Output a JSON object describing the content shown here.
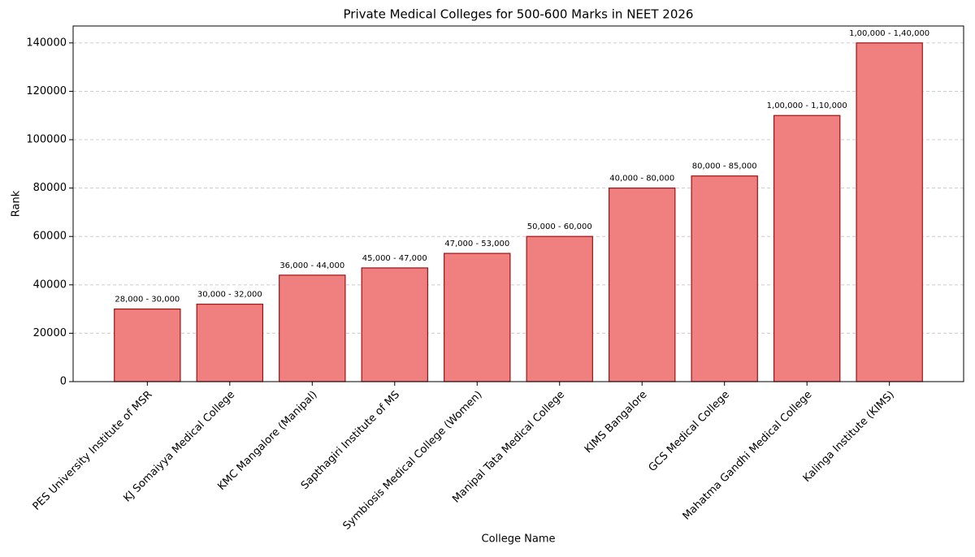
{
  "chart_data": {
    "type": "bar",
    "title": "Private Medical Colleges for 500-600 Marks in NEET 2026",
    "x_label": "College Name",
    "y_label": "Rank",
    "categories": [
      "PES University Institute of MSR",
      "KJ Somaiyya Medical College",
      "KMC Mangalore (Manipal)",
      "Sapthagiri Institute of MS",
      "Symbiosis Medical College (Women)",
      "Manipal Tata Medical College",
      "KIMS Bangalore",
      "GCS Medical College",
      "Mahatma Gandhi Medical College",
      "Kalinga Institute (KIMS)"
    ],
    "values": [
      30000,
      32000,
      44000,
      47000,
      53000,
      60000,
      80000,
      85000,
      110000,
      140000
    ],
    "value_labels": [
      "28,000 - 30,000",
      "30,000 - 32,000",
      "36,000 - 44,000",
      "45,000 - 47,000",
      "47,000 - 53,000",
      "50,000 - 60,000",
      "40,000 - 80,000",
      "80,000 - 85,000",
      "1,00,000 - 1,10,000",
      "1,00,000 - 1,40,000"
    ],
    "color": "#f08080",
    "edge_color": "#a01010",
    "ylim": [
      0,
      147000
    ],
    "yticks": [
      0,
      20000,
      40000,
      60000,
      80000,
      100000,
      120000,
      140000
    ],
    "grid": true
  }
}
